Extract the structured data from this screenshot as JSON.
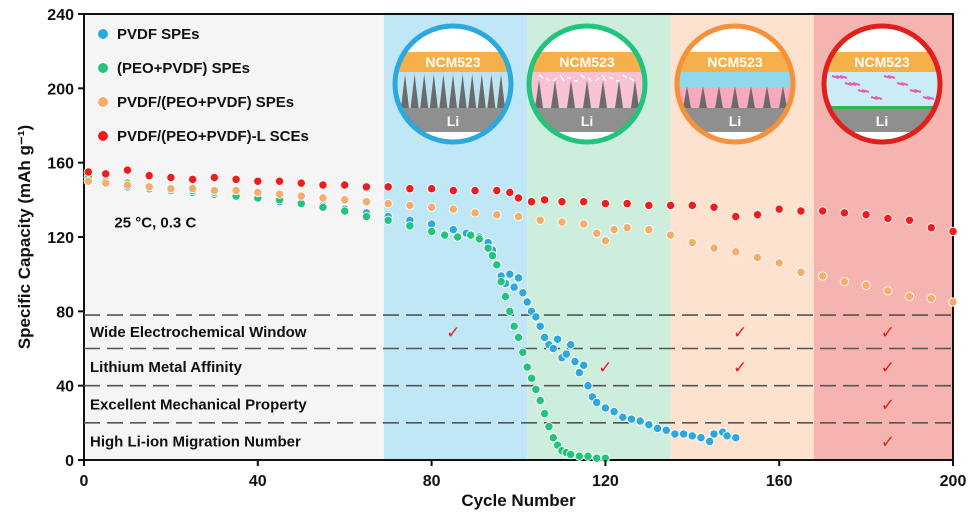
{
  "chart_data": {
    "type": "scatter",
    "xlabel": "Cycle Number",
    "ylabel": "Specific Capacity (mAh g⁻¹)",
    "xlim": [
      0,
      200
    ],
    "ylim": [
      0,
      240
    ],
    "x_ticks": [
      "0",
      "40",
      "80",
      "120",
      "160",
      "200"
    ],
    "y_ticks": [
      "0",
      "40",
      "80",
      "120",
      "160",
      "200",
      "240"
    ],
    "condition": "25 °C, 0.3 C",
    "shaded_regions": [
      {
        "x_from": 69,
        "x_to": 102,
        "color": "#bfe7f6"
      },
      {
        "x_from": 102,
        "x_to": 135,
        "color": "#cdeedd"
      },
      {
        "x_from": 135,
        "x_to": 168,
        "color": "#fde3cf"
      },
      {
        "x_from": 168,
        "x_to": 200,
        "color": "#f6b4b0"
      }
    ],
    "series": [
      {
        "name": "PVDF SPEs",
        "color": "#2ba8dd",
        "points": [
          [
            1,
            150
          ],
          [
            5,
            149
          ],
          [
            10,
            147
          ],
          [
            15,
            146
          ],
          [
            20,
            145
          ],
          [
            25,
            144
          ],
          [
            30,
            143
          ],
          [
            35,
            142
          ],
          [
            40,
            141
          ],
          [
            45,
            139
          ],
          [
            50,
            138
          ],
          [
            55,
            137
          ],
          [
            60,
            135
          ],
          [
            65,
            133
          ],
          [
            70,
            131
          ],
          [
            75,
            129
          ],
          [
            80,
            127
          ],
          [
            85,
            124
          ],
          [
            88,
            122
          ],
          [
            91,
            120
          ],
          [
            93,
            117
          ],
          [
            94,
            113
          ],
          [
            95,
            105
          ],
          [
            96,
            99
          ],
          [
            97,
            95
          ],
          [
            98,
            100
          ],
          [
            99,
            93
          ],
          [
            100,
            98
          ],
          [
            101,
            90
          ],
          [
            102,
            85
          ],
          [
            103,
            80
          ],
          [
            104,
            77
          ],
          [
            105,
            72
          ],
          [
            106,
            66
          ],
          [
            107,
            62
          ],
          [
            108,
            60
          ],
          [
            109,
            65
          ],
          [
            110,
            55
          ],
          [
            111,
            57
          ],
          [
            112,
            62
          ],
          [
            113,
            53
          ],
          [
            114,
            47
          ],
          [
            115,
            51
          ],
          [
            116,
            40
          ],
          [
            117,
            34
          ],
          [
            118,
            31
          ],
          [
            120,
            28
          ],
          [
            122,
            26
          ],
          [
            124,
            23
          ],
          [
            126,
            22
          ],
          [
            128,
            21
          ],
          [
            130,
            19
          ],
          [
            132,
            17
          ],
          [
            134,
            16
          ],
          [
            136,
            14
          ],
          [
            138,
            14
          ],
          [
            140,
            13
          ],
          [
            142,
            12
          ],
          [
            144,
            10
          ],
          [
            145,
            14
          ],
          [
            147,
            15
          ],
          [
            148,
            13
          ],
          [
            150,
            12
          ]
        ]
      },
      {
        "name": "(PEO+PVDF) SPEs",
        "color": "#22c37a",
        "points": [
          [
            1,
            152
          ],
          [
            5,
            150
          ],
          [
            10,
            149
          ],
          [
            15,
            147
          ],
          [
            20,
            146
          ],
          [
            25,
            145
          ],
          [
            30,
            144
          ],
          [
            35,
            142
          ],
          [
            40,
            141
          ],
          [
            45,
            140
          ],
          [
            50,
            138
          ],
          [
            55,
            136
          ],
          [
            60,
            134
          ],
          [
            65,
            131
          ],
          [
            70,
            129
          ],
          [
            75,
            126
          ],
          [
            80,
            123
          ],
          [
            83,
            121
          ],
          [
            86,
            120
          ],
          [
            89,
            121
          ],
          [
            91,
            119
          ],
          [
            93,
            114
          ],
          [
            94,
            110
          ],
          [
            95,
            105
          ],
          [
            96,
            96
          ],
          [
            97,
            88
          ],
          [
            98,
            80
          ],
          [
            99,
            72
          ],
          [
            100,
            66
          ],
          [
            101,
            58
          ],
          [
            102,
            50
          ],
          [
            103,
            44
          ],
          [
            104,
            38
          ],
          [
            105,
            32
          ],
          [
            106,
            25
          ],
          [
            107,
            18
          ],
          [
            108,
            12
          ],
          [
            109,
            8
          ],
          [
            110,
            5
          ],
          [
            111,
            4
          ],
          [
            112,
            3
          ],
          [
            114,
            2
          ],
          [
            116,
            2
          ],
          [
            118,
            1
          ],
          [
            120,
            1
          ]
        ]
      },
      {
        "name": "PVDF/(PEO+PVDF) SPEs",
        "color": "#f4ad6a",
        "points": [
          [
            1,
            150
          ],
          [
            5,
            149
          ],
          [
            10,
            148
          ],
          [
            15,
            147
          ],
          [
            20,
            146
          ],
          [
            25,
            146
          ],
          [
            30,
            145
          ],
          [
            35,
            145
          ],
          [
            40,
            144
          ],
          [
            45,
            143
          ],
          [
            50,
            142
          ],
          [
            55,
            141
          ],
          [
            60,
            140
          ],
          [
            65,
            139
          ],
          [
            70,
            138
          ],
          [
            75,
            137
          ],
          [
            80,
            136
          ],
          [
            85,
            135
          ],
          [
            90,
            133
          ],
          [
            95,
            132
          ],
          [
            100,
            131
          ],
          [
            105,
            129
          ],
          [
            110,
            128
          ],
          [
            115,
            127
          ],
          [
            118,
            122
          ],
          [
            120,
            118
          ],
          [
            122,
            124
          ],
          [
            125,
            125
          ],
          [
            130,
            124
          ],
          [
            135,
            121
          ],
          [
            140,
            117
          ],
          [
            145,
            114
          ],
          [
            150,
            112
          ],
          [
            155,
            109
          ],
          [
            160,
            106
          ],
          [
            165,
            101
          ],
          [
            170,
            99
          ],
          [
            175,
            96
          ],
          [
            180,
            94
          ],
          [
            185,
            91
          ],
          [
            190,
            88
          ],
          [
            195,
            87
          ],
          [
            200,
            85
          ]
        ]
      },
      {
        "name": "PVDF/(PEO+PVDF)-L SCEs",
        "color": "#ee1c1c",
        "points": [
          [
            1,
            155
          ],
          [
            5,
            154
          ],
          [
            10,
            156
          ],
          [
            15,
            153
          ],
          [
            20,
            152
          ],
          [
            25,
            151
          ],
          [
            30,
            152
          ],
          [
            35,
            151
          ],
          [
            40,
            150
          ],
          [
            45,
            150
          ],
          [
            50,
            149
          ],
          [
            55,
            148
          ],
          [
            60,
            148
          ],
          [
            65,
            147
          ],
          [
            70,
            147
          ],
          [
            75,
            146
          ],
          [
            80,
            146
          ],
          [
            85,
            145
          ],
          [
            90,
            145
          ],
          [
            95,
            145
          ],
          [
            98,
            144
          ],
          [
            100,
            141
          ],
          [
            103,
            139
          ],
          [
            106,
            140
          ],
          [
            110,
            139
          ],
          [
            115,
            139
          ],
          [
            120,
            138
          ],
          [
            125,
            138
          ],
          [
            130,
            137
          ],
          [
            135,
            137
          ],
          [
            140,
            137
          ],
          [
            145,
            136
          ],
          [
            150,
            131
          ],
          [
            155,
            132
          ],
          [
            160,
            135
          ],
          [
            165,
            134
          ],
          [
            170,
            134
          ],
          [
            175,
            133
          ],
          [
            180,
            132
          ],
          [
            185,
            130
          ],
          [
            190,
            129
          ],
          [
            195,
            125
          ],
          [
            200,
            123
          ]
        ]
      }
    ],
    "properties": [
      {
        "label": "Wide Electrochemical Window",
        "y": 69,
        "checks": [
          85,
          151,
          185
        ]
      },
      {
        "label": "Lithium Metal Affinity",
        "y": 50,
        "checks": [
          120,
          151,
          185
        ]
      },
      {
        "label": "Excellent Mechanical Property",
        "y": 30,
        "checks": [
          185
        ]
      },
      {
        "label": "High Li-ion Migration Number",
        "y": 10,
        "checks": [
          185
        ]
      }
    ],
    "property_lines_y": [
      78,
      60,
      40,
      20
    ],
    "insets": [
      {
        "cathode": "NCM523",
        "anode": "Li",
        "ring": "#2ba8dd"
      },
      {
        "cathode": "NCM523",
        "anode": "Li",
        "ring": "#22c37a"
      },
      {
        "cathode": "NCM523",
        "anode": "Li",
        "ring": "#f4913a"
      },
      {
        "cathode": "NCM523",
        "anode": "Li",
        "ring": "#e0201c"
      }
    ],
    "check_color": "#e41e1e",
    "check_symbol": "✓"
  }
}
